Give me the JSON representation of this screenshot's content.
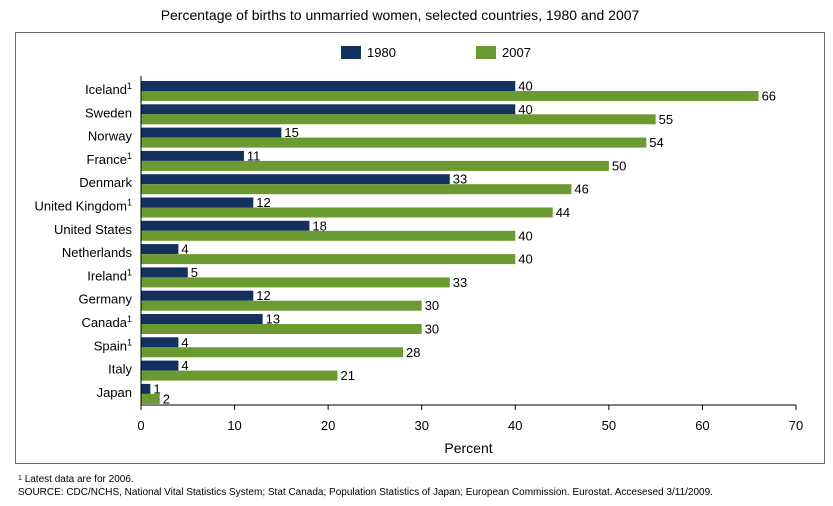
{
  "chart_data": {
    "type": "bar",
    "orientation": "horizontal",
    "title": "Percentage of births to unmarried women, selected countries, 1980 and 2007",
    "xlabel": "Percent",
    "ylabel": "",
    "xlim": [
      0,
      70
    ],
    "xticks": [
      "0",
      "10",
      "20",
      "30",
      "40",
      "50",
      "60",
      "70"
    ],
    "grid": false,
    "legend_position": "top",
    "categories": [
      {
        "name": "Iceland",
        "note": "1"
      },
      {
        "name": "Sweden",
        "note": ""
      },
      {
        "name": "Norway",
        "note": ""
      },
      {
        "name": "France",
        "note": "1"
      },
      {
        "name": "Denmark",
        "note": ""
      },
      {
        "name": "United Kingdom",
        "note": "1"
      },
      {
        "name": "United States",
        "note": ""
      },
      {
        "name": "Netherlands",
        "note": ""
      },
      {
        "name": "Ireland",
        "note": "1"
      },
      {
        "name": "Germany",
        "note": ""
      },
      {
        "name": "Canada",
        "note": "1"
      },
      {
        "name": "Spain",
        "note": "1"
      },
      {
        "name": "Italy",
        "note": ""
      },
      {
        "name": "Japan",
        "note": ""
      }
    ],
    "series": [
      {
        "name": "1980",
        "color": "#14305e",
        "values": [
          40,
          40,
          15,
          11,
          33,
          12,
          18,
          4,
          5,
          12,
          13,
          4,
          4,
          1
        ]
      },
      {
        "name": "2007",
        "color": "#6a9a30",
        "values": [
          66,
          55,
          54,
          50,
          46,
          44,
          40,
          40,
          33,
          30,
          30,
          28,
          21,
          2
        ]
      }
    ]
  },
  "footnote": {
    "marker": "1",
    "text": "Latest data are for 2006."
  },
  "source": "SOURCE: CDC/NCHS, National Vital Statistics System; Stat Canada; Population Statistics of Japan; European Commission.  Eurostat.  Accesesed 3/11/2009."
}
